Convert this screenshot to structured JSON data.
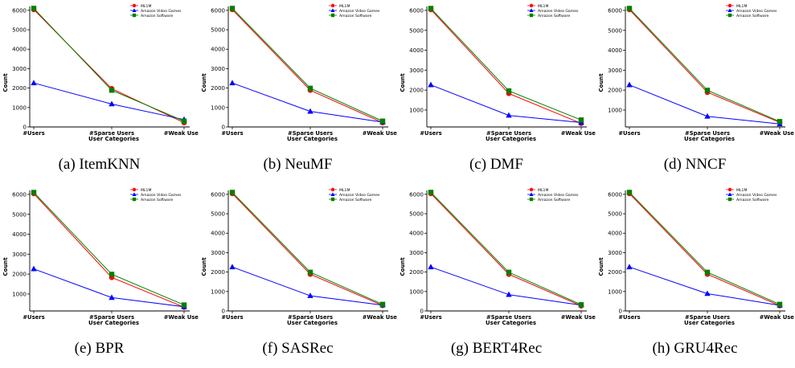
{
  "figure": {
    "series_colors": {
      "ML1M": "#ff0000",
      "Amazon Video Games": "#0000ff",
      "Amazon Software": "#008000"
    },
    "series_markers": {
      "ML1M": "circle",
      "Amazon Video Games": "triangle",
      "Amazon Software": "square"
    }
  },
  "chart_data": [
    {
      "type": "line",
      "caption": "(a) ItemKNN",
      "xlabel": "User Categories",
      "ylabel": "Count",
      "categories": [
        "#Users",
        "#Sparse Users",
        "#Weak Users"
      ],
      "ylim": [
        0,
        6200
      ],
      "yticks": [
        0,
        1000,
        2000,
        3000,
        4000,
        5000,
        6000
      ],
      "legend": "top-right",
      "series": [
        {
          "name": "ML1M",
          "values": [
            6040,
            1970,
            220
          ]
        },
        {
          "name": "Amazon Video Games",
          "values": [
            2260,
            1180,
            380
          ]
        },
        {
          "name": "Amazon Software",
          "values": [
            6100,
            1890,
            300
          ]
        }
      ]
    },
    {
      "type": "line",
      "caption": "(b) NeuMF",
      "xlabel": "User Categories",
      "ylabel": "Count",
      "categories": [
        "#Users",
        "#Sparse Users",
        "#Weak Users"
      ],
      "ylim": [
        0,
        6200
      ],
      "yticks": [
        0,
        1000,
        2000,
        3000,
        4000,
        5000,
        6000
      ],
      "legend": "top-right",
      "series": [
        {
          "name": "ML1M",
          "values": [
            6040,
            1890,
            220
          ]
        },
        {
          "name": "Amazon Video Games",
          "values": [
            2260,
            800,
            250
          ]
        },
        {
          "name": "Amazon Software",
          "values": [
            6100,
            1990,
            300
          ]
        }
      ]
    },
    {
      "type": "line",
      "caption": "(c) DMF",
      "xlabel": "User Categories",
      "ylabel": "Count",
      "categories": [
        "#Users",
        "#Sparse Users",
        "#Weak Users"
      ],
      "ylim": [
        150,
        6200
      ],
      "yticks": [
        1000,
        2000,
        3000,
        4000,
        5000,
        6000
      ],
      "legend": "top-right",
      "series": [
        {
          "name": "ML1M",
          "values": [
            6040,
            1830,
            330
          ]
        },
        {
          "name": "Amazon Video Games",
          "values": [
            2260,
            730,
            370
          ]
        },
        {
          "name": "Amazon Software",
          "values": [
            6100,
            1960,
            500
          ]
        }
      ]
    },
    {
      "type": "line",
      "caption": "(d) NNCF",
      "xlabel": "User Categories",
      "ylabel": "Count",
      "categories": [
        "#Users",
        "#Sparse Users",
        "#Weak Users"
      ],
      "ylim": [
        150,
        6200
      ],
      "yticks": [
        1000,
        2000,
        3000,
        4000,
        5000,
        6000
      ],
      "legend": "top-right",
      "series": [
        {
          "name": "ML1M",
          "values": [
            6040,
            1890,
            380
          ]
        },
        {
          "name": "Amazon Video Games",
          "values": [
            2260,
            680,
            300
          ]
        },
        {
          "name": "Amazon Software",
          "values": [
            6100,
            1990,
            420
          ]
        }
      ]
    },
    {
      "type": "line",
      "caption": "(e) BPR",
      "xlabel": "User Categories",
      "ylabel": "Count",
      "categories": [
        "#Users",
        "#Sparse Users",
        "#Weak Users"
      ],
      "ylim": [
        150,
        6200
      ],
      "yticks": [
        1000,
        2000,
        3000,
        4000,
        5000,
        6000
      ],
      "legend": "top-right",
      "series": [
        {
          "name": "ML1M",
          "values": [
            6040,
            1830,
            340
          ]
        },
        {
          "name": "Amazon Video Games",
          "values": [
            2260,
            820,
            360
          ]
        },
        {
          "name": "Amazon Software",
          "values": [
            6100,
            1990,
            450
          ]
        }
      ]
    },
    {
      "type": "line",
      "caption": "(f) SASRec",
      "xlabel": "User Categories",
      "ylabel": "Count",
      "categories": [
        "#Users",
        "#Sparse Users",
        "#Weak Users"
      ],
      "ylim": [
        0,
        6200
      ],
      "yticks": [
        0,
        1000,
        2000,
        3000,
        4000,
        5000,
        6000
      ],
      "legend": "top-right",
      "series": [
        {
          "name": "ML1M",
          "values": [
            6040,
            1890,
            280
          ]
        },
        {
          "name": "Amazon Video Games",
          "values": [
            2260,
            780,
            300
          ]
        },
        {
          "name": "Amazon Software",
          "values": [
            6100,
            1990,
            340
          ]
        }
      ]
    },
    {
      "type": "line",
      "caption": "(g) BERT4Rec",
      "xlabel": "User Categories",
      "ylabel": "Count",
      "categories": [
        "#Users",
        "#Sparse Users",
        "#Weak Users"
      ],
      "ylim": [
        0,
        6200
      ],
      "yticks": [
        0,
        1000,
        2000,
        3000,
        4000,
        5000,
        6000
      ],
      "legend": "top-right",
      "series": [
        {
          "name": "ML1M",
          "values": [
            6040,
            1890,
            260
          ]
        },
        {
          "name": "Amazon Video Games",
          "values": [
            2260,
            840,
            300
          ]
        },
        {
          "name": "Amazon Software",
          "values": [
            6100,
            1990,
            320
          ]
        }
      ]
    },
    {
      "type": "line",
      "caption": "(h) GRU4Rec",
      "xlabel": "User Categories",
      "ylabel": "Count",
      "categories": [
        "#Users",
        "#Sparse Users",
        "#Weak Users"
      ],
      "ylim": [
        0,
        6200
      ],
      "yticks": [
        0,
        1000,
        2000,
        3000,
        4000,
        5000,
        6000
      ],
      "legend": "top-right",
      "series": [
        {
          "name": "ML1M",
          "values": [
            6040,
            1890,
            270
          ]
        },
        {
          "name": "Amazon Video Games",
          "values": [
            2260,
            890,
            290
          ]
        },
        {
          "name": "Amazon Software",
          "values": [
            6100,
            1990,
            340
          ]
        }
      ]
    }
  ]
}
